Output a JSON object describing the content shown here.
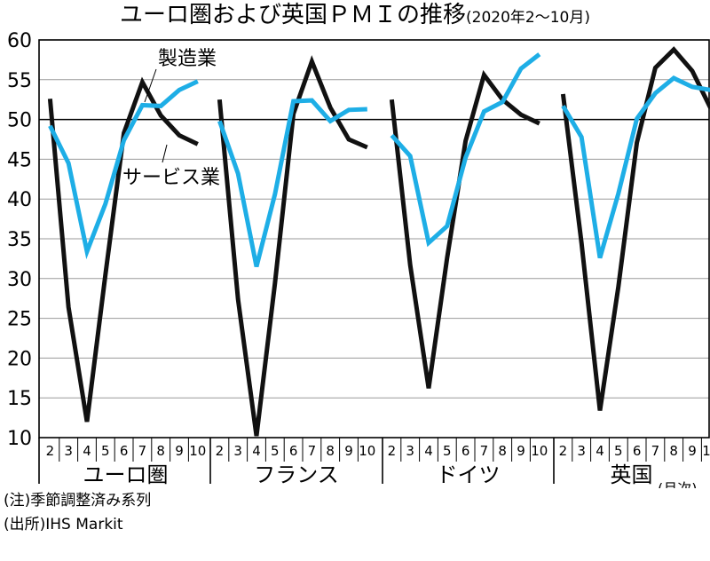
{
  "title": "ユーロ圏および英国ＰＭＩの推移",
  "subtitle": "(2020年2〜10月)",
  "notes": {
    "seasonal": "(注)季節調整済み系列",
    "source": "(出所)IHS Markit"
  },
  "colors": {
    "manufacturing": "#1EAEE6",
    "services": "#111111",
    "grid": "#9a9a9a"
  },
  "chart_data": {
    "type": "line",
    "ylim": [
      10,
      60
    ],
    "yticks": [
      10,
      15,
      20,
      25,
      30,
      35,
      40,
      45,
      50,
      55,
      60
    ],
    "reference_line": 50,
    "grid": true,
    "x_unit_label": "(月次)",
    "month_labels": [
      "2",
      "3",
      "4",
      "5",
      "6",
      "7",
      "8",
      "9",
      "10"
    ],
    "series_labels": {
      "manufacturing": "製造業",
      "services": "サービス業"
    },
    "regions": [
      {
        "name": "ユーロ圏",
        "manufacturing": [
          49.2,
          44.5,
          33.4,
          39.4,
          47.4,
          51.8,
          51.7,
          53.7,
          54.8
        ],
        "services": [
          52.6,
          26.4,
          12.0,
          30.5,
          48.3,
          54.7,
          50.5,
          48.0,
          46.9
        ]
      },
      {
        "name": "フランス",
        "manufacturing": [
          49.8,
          43.2,
          31.5,
          40.6,
          52.3,
          52.4,
          49.8,
          51.2,
          51.3
        ],
        "services": [
          52.5,
          27.4,
          10.2,
          29.4,
          50.7,
          57.3,
          51.5,
          47.5,
          46.5
        ]
      },
      {
        "name": "ドイツ",
        "manufacturing": [
          48.0,
          45.4,
          34.5,
          36.6,
          45.2,
          51.0,
          52.2,
          56.4,
          58.2
        ],
        "services": [
          52.5,
          31.7,
          16.2,
          32.6,
          47.3,
          55.6,
          52.5,
          50.6,
          49.5
        ]
      },
      {
        "name": "英国",
        "manufacturing": [
          51.7,
          47.8,
          32.6,
          40.7,
          50.1,
          53.3,
          55.2,
          54.1,
          53.7
        ],
        "services": [
          53.2,
          34.5,
          13.4,
          29.0,
          47.1,
          56.5,
          58.8,
          56.1,
          51.4
        ]
      }
    ]
  }
}
